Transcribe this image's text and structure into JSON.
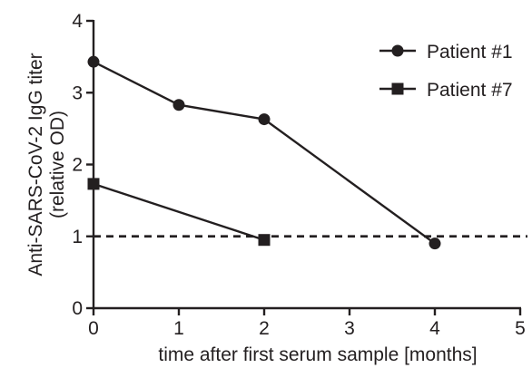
{
  "chart_data": {
    "type": "line",
    "xlabel": "time after first serum sample [months]",
    "ylabel_lines": [
      "Anti-SARS-CoV-2 IgG titer",
      "(relative OD)"
    ],
    "xlim": [
      0,
      5
    ],
    "ylim": [
      0,
      4
    ],
    "x_ticks": [
      "0",
      "1",
      "2",
      "3",
      "4",
      "5"
    ],
    "y_ticks": [
      "0",
      "1",
      "2",
      "3",
      "4"
    ],
    "reference_line": {
      "y": 1.0,
      "style": "dashed"
    },
    "legend_position": "top-right",
    "series": [
      {
        "name": "Patient #1",
        "marker": "circle",
        "x": [
          0,
          1,
          2,
          4
        ],
        "y": [
          3.43,
          2.83,
          2.63,
          0.9
        ]
      },
      {
        "name": "Patient #7",
        "marker": "square",
        "x": [
          0,
          2
        ],
        "y": [
          1.73,
          0.95
        ]
      }
    ],
    "colors": {
      "ink": "#231f20"
    }
  }
}
